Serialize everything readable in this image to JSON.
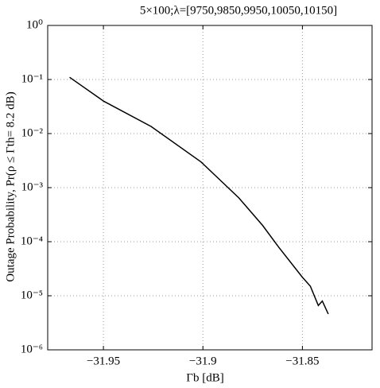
{
  "chart_data": {
    "type": "line",
    "title": "5×100;λ=[9750,9850,9950,10050,10150]",
    "xlabel": "Γb [dB]",
    "ylabel": "Outage Probability, Pr(ρ ≤ Γth= 8.2 dB)",
    "log_y": true,
    "grid": true,
    "series": [
      {
        "color": "#000000",
        "x": [
          -31.967,
          -31.95,
          -31.926,
          -31.901,
          -31.882,
          -31.87,
          -31.862,
          -31.85,
          -31.846,
          -31.842,
          -31.84,
          -31.837
        ],
        "values": [
          0.11,
          0.04,
          0.0135,
          0.003,
          0.00065,
          0.0002,
          8e-05,
          2.2e-05,
          1.5e-05,
          6.6e-06,
          8e-06,
          4.6e-06
        ]
      }
    ],
    "xlim": [
      -31.978,
      -31.815
    ],
    "xticks": [
      {
        "value": -31.95,
        "label": "−31.95"
      },
      {
        "value": -31.9,
        "label": "−31.9"
      },
      {
        "value": -31.85,
        "label": "−31.85"
      }
    ],
    "ylim": [
      1e-06,
      1
    ],
    "yticks": [
      {
        "value": 1e-06,
        "label": "10⁻⁶"
      },
      {
        "value": 1e-05,
        "label": "10⁻⁵"
      },
      {
        "value": 0.0001,
        "label": "10⁻⁴"
      },
      {
        "value": 0.001,
        "label": "10⁻³"
      },
      {
        "value": 0.01,
        "label": "10⁻²"
      },
      {
        "value": 0.1,
        "label": "10⁻¹"
      },
      {
        "value": 1,
        "label": "10⁰"
      }
    ]
  }
}
